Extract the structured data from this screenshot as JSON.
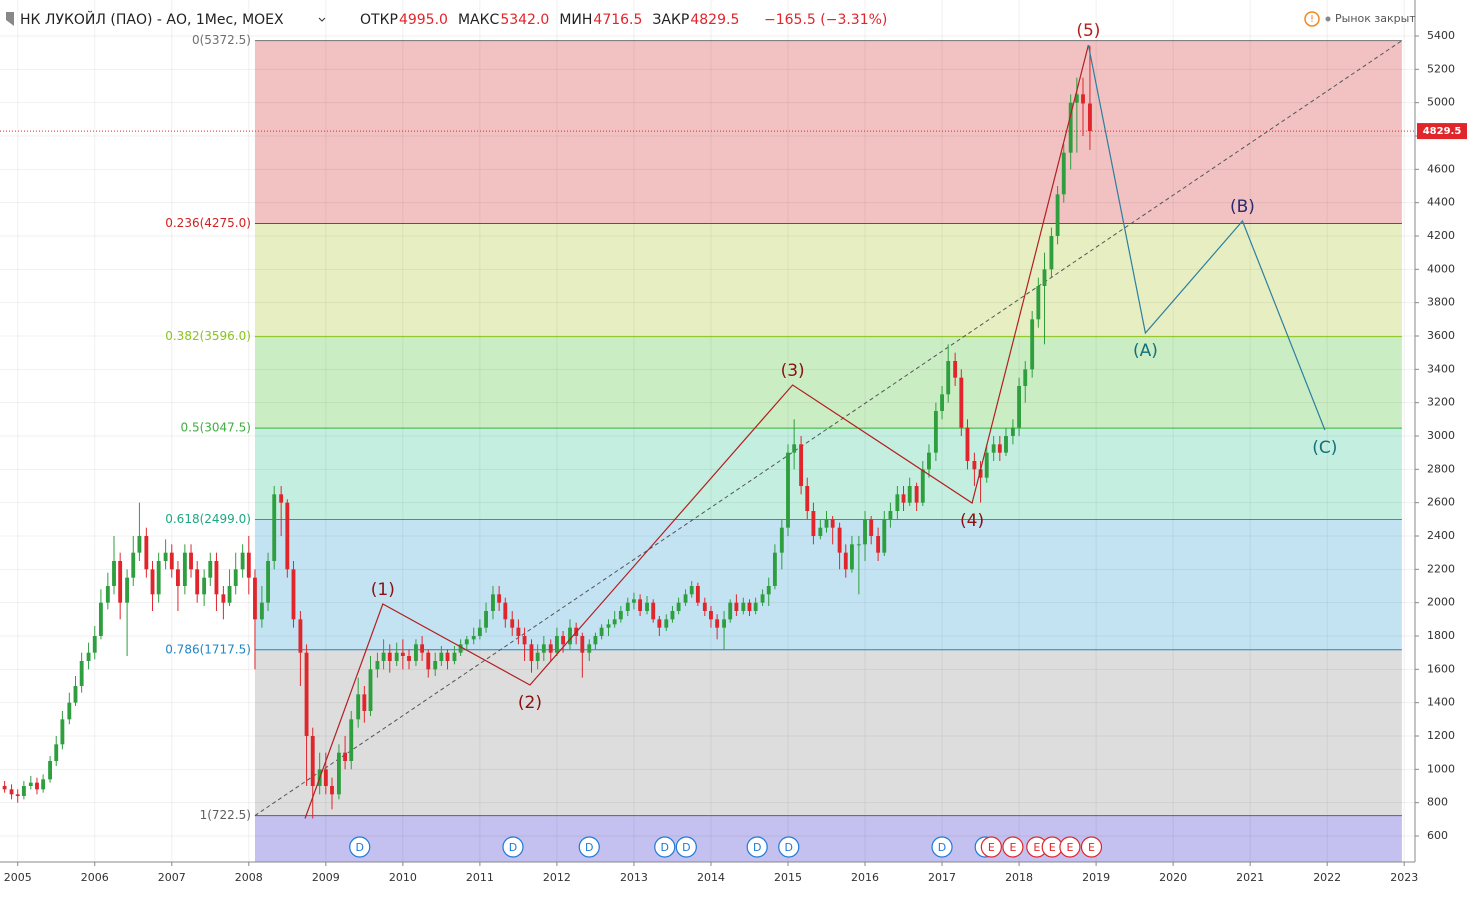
{
  "header": {
    "title": "НК ЛУКОЙЛ (ПАО) - АО, 1Мес, MOEX",
    "ohlc": [
      {
        "label": "ОТКР",
        "value": "4995.0"
      },
      {
        "label": "МАКС",
        "value": "5342.0"
      },
      {
        "label": "МИН",
        "value": "4716.5"
      },
      {
        "label": "ЗАКР",
        "value": "4829.5"
      }
    ],
    "change": "−165.5 (−3.31%)",
    "status": "Рынок закрыт"
  },
  "chart_data": {
    "type": "candlestick",
    "up_color": "#2e9e3e",
    "down_color": "#e0252b",
    "xlim": [
      2004.77,
      2023.14
    ],
    "xticks": [
      2005,
      2006,
      2007,
      2008,
      2009,
      2010,
      2011,
      2012,
      2013,
      2014,
      2015,
      2016,
      2017,
      2018,
      2019,
      2020,
      2021,
      2022,
      2023
    ],
    "ylim": [
      444,
      5616
    ],
    "yticks": [
      600,
      800,
      1000,
      1200,
      1400,
      1600,
      1800,
      2000,
      2200,
      2400,
      2600,
      2800,
      3000,
      3200,
      3400,
      3600,
      3800,
      4000,
      4200,
      4400,
      4600,
      4800,
      5000,
      5200,
      5400
    ],
    "grid": true,
    "last_price": {
      "value": 4829.5,
      "label": "4829.5",
      "color": "#e0252b"
    },
    "x": [
      2004.83,
      2004.92,
      2005.0,
      2005.08,
      2005.17,
      2005.25,
      2005.33,
      2005.42,
      2005.5,
      2005.58,
      2005.67,
      2005.75,
      2005.83,
      2005.92,
      2006.0,
      2006.08,
      2006.17,
      2006.25,
      2006.33,
      2006.42,
      2006.5,
      2006.58,
      2006.67,
      2006.75,
      2006.83,
      2006.92,
      2007.0,
      2007.08,
      2007.17,
      2007.25,
      2007.33,
      2007.42,
      2007.5,
      2007.58,
      2007.67,
      2007.75,
      2007.83,
      2007.92,
      2008.0,
      2008.08,
      2008.17,
      2008.25,
      2008.33,
      2008.42,
      2008.5,
      2008.58,
      2008.67,
      2008.75,
      2008.83,
      2008.92,
      2009.0,
      2009.08,
      2009.17,
      2009.25,
      2009.33,
      2009.42,
      2009.5,
      2009.58,
      2009.67,
      2009.75,
      2009.83,
      2009.92,
      2010.0,
      2010.08,
      2010.17,
      2010.25,
      2010.33,
      2010.42,
      2010.5,
      2010.58,
      2010.67,
      2010.75,
      2010.83,
      2010.92,
      2011.0,
      2011.08,
      2011.17,
      2011.25,
      2011.33,
      2011.42,
      2011.5,
      2011.58,
      2011.67,
      2011.75,
      2011.83,
      2011.92,
      2012.0,
      2012.08,
      2012.17,
      2012.25,
      2012.33,
      2012.42,
      2012.5,
      2012.58,
      2012.67,
      2012.75,
      2012.83,
      2012.92,
      2013.0,
      2013.08,
      2013.17,
      2013.25,
      2013.33,
      2013.42,
      2013.5,
      2013.58,
      2013.67,
      2013.75,
      2013.83,
      2013.92,
      2014.0,
      2014.08,
      2014.17,
      2014.25,
      2014.33,
      2014.42,
      2014.5,
      2014.58,
      2014.67,
      2014.75,
      2014.83,
      2014.92,
      2015.0,
      2015.08,
      2015.17,
      2015.25,
      2015.33,
      2015.42,
      2015.5,
      2015.58,
      2015.67,
      2015.75,
      2015.83,
      2015.92,
      2016.0,
      2016.08,
      2016.17,
      2016.25,
      2016.33,
      2016.42,
      2016.5,
      2016.58,
      2016.67,
      2016.75,
      2016.83,
      2016.92,
      2017.0,
      2017.08,
      2017.17,
      2017.25,
      2017.33,
      2017.42,
      2017.5,
      2017.58,
      2017.67,
      2017.75,
      2017.83,
      2017.92,
      2018.0,
      2018.08,
      2018.17,
      2018.25,
      2018.33,
      2018.42,
      2018.5,
      2018.58,
      2018.67,
      2018.75,
      2018.83,
      2018.92
    ],
    "ohlc": [
      [
        900,
        930,
        860,
        880
      ],
      [
        880,
        910,
        820,
        850
      ],
      [
        850,
        880,
        800,
        840
      ],
      [
        840,
        930,
        820,
        900
      ],
      [
        900,
        960,
        880,
        920
      ],
      [
        920,
        950,
        850,
        880
      ],
      [
        880,
        970,
        860,
        940
      ],
      [
        940,
        1080,
        920,
        1050
      ],
      [
        1050,
        1200,
        1020,
        1150
      ],
      [
        1150,
        1350,
        1120,
        1300
      ],
      [
        1300,
        1460,
        1270,
        1400
      ],
      [
        1400,
        1560,
        1380,
        1500
      ],
      [
        1500,
        1700,
        1460,
        1650
      ],
      [
        1650,
        1760,
        1600,
        1700
      ],
      [
        1700,
        1860,
        1660,
        1800
      ],
      [
        1800,
        2080,
        1780,
        2000
      ],
      [
        2000,
        2180,
        1960,
        2100
      ],
      [
        2100,
        2400,
        2050,
        2250
      ],
      [
        2250,
        2300,
        1900,
        2000
      ],
      [
        2000,
        2200,
        1680,
        2150
      ],
      [
        2150,
        2400,
        2100,
        2300
      ],
      [
        2300,
        2600,
        2250,
        2400
      ],
      [
        2400,
        2450,
        2150,
        2200
      ],
      [
        2200,
        2250,
        1950,
        2050
      ],
      [
        2050,
        2300,
        2000,
        2250
      ],
      [
        2250,
        2380,
        2200,
        2300
      ],
      [
        2300,
        2350,
        2150,
        2200
      ],
      [
        2200,
        2250,
        1950,
        2100
      ],
      [
        2100,
        2350,
        2050,
        2300
      ],
      [
        2300,
        2350,
        2150,
        2200
      ],
      [
        2200,
        2250,
        2000,
        2050
      ],
      [
        2050,
        2200,
        1980,
        2150
      ],
      [
        2150,
        2300,
        2100,
        2250
      ],
      [
        2250,
        2300,
        1950,
        2050
      ],
      [
        2050,
        2100,
        1900,
        2000
      ],
      [
        2000,
        2200,
        1980,
        2100
      ],
      [
        2100,
        2300,
        2050,
        2200
      ],
      [
        2200,
        2350,
        2150,
        2300
      ],
      [
        2300,
        2400,
        2050,
        2150
      ],
      [
        2150,
        2200,
        1600,
        1900
      ],
      [
        1900,
        2100,
        1850,
        2000
      ],
      [
        2000,
        2300,
        1950,
        2250
      ],
      [
        2250,
        2700,
        2200,
        2650
      ],
      [
        2650,
        2700,
        2400,
        2600
      ],
      [
        2600,
        2620,
        2150,
        2200
      ],
      [
        2200,
        2250,
        1850,
        1900
      ],
      [
        1900,
        1950,
        1500,
        1700
      ],
      [
        1700,
        1750,
        900,
        1200
      ],
      [
        1200,
        1250,
        705,
        900
      ],
      [
        900,
        1100,
        850,
        1000
      ],
      [
        1000,
        1100,
        850,
        900
      ],
      [
        900,
        950,
        760,
        850
      ],
      [
        850,
        1150,
        820,
        1100
      ],
      [
        1100,
        1200,
        1000,
        1050
      ],
      [
        1050,
        1350,
        1000,
        1300
      ],
      [
        1300,
        1550,
        1250,
        1450
      ],
      [
        1450,
        1500,
        1280,
        1350
      ],
      [
        1350,
        1680,
        1320,
        1600
      ],
      [
        1600,
        1700,
        1550,
        1650
      ],
      [
        1650,
        1780,
        1600,
        1700
      ],
      [
        1700,
        1750,
        1580,
        1650
      ],
      [
        1650,
        1760,
        1620,
        1700
      ],
      [
        1700,
        1780,
        1600,
        1680
      ],
      [
        1680,
        1720,
        1600,
        1650
      ],
      [
        1650,
        1780,
        1620,
        1750
      ],
      [
        1750,
        1800,
        1650,
        1700
      ],
      [
        1700,
        1720,
        1550,
        1600
      ],
      [
        1600,
        1700,
        1560,
        1650
      ],
      [
        1650,
        1740,
        1620,
        1700
      ],
      [
        1700,
        1720,
        1600,
        1650
      ],
      [
        1650,
        1740,
        1630,
        1700
      ],
      [
        1700,
        1780,
        1680,
        1750
      ],
      [
        1750,
        1800,
        1720,
        1780
      ],
      [
        1780,
        1850,
        1750,
        1800
      ],
      [
        1800,
        1900,
        1780,
        1850
      ],
      [
        1850,
        2000,
        1820,
        1950
      ],
      [
        1950,
        2100,
        1900,
        2050
      ],
      [
        2050,
        2100,
        1950,
        2000
      ],
      [
        2000,
        2030,
        1850,
        1900
      ],
      [
        1900,
        1950,
        1800,
        1850
      ],
      [
        1850,
        1900,
        1750,
        1800
      ],
      [
        1800,
        1850,
        1650,
        1750
      ],
      [
        1750,
        1780,
        1580,
        1650
      ],
      [
        1650,
        1750,
        1600,
        1700
      ],
      [
        1700,
        1800,
        1650,
        1750
      ],
      [
        1750,
        1780,
        1650,
        1700
      ],
      [
        1700,
        1850,
        1680,
        1800
      ],
      [
        1800,
        1830,
        1700,
        1750
      ],
      [
        1750,
        1900,
        1720,
        1850
      ],
      [
        1850,
        1880,
        1750,
        1800
      ],
      [
        1800,
        1820,
        1550,
        1700
      ],
      [
        1700,
        1780,
        1650,
        1750
      ],
      [
        1750,
        1820,
        1720,
        1800
      ],
      [
        1800,
        1870,
        1780,
        1850
      ],
      [
        1850,
        1900,
        1800,
        1870
      ],
      [
        1870,
        1950,
        1850,
        1900
      ],
      [
        1900,
        1980,
        1880,
        1950
      ],
      [
        1950,
        2030,
        1920,
        2000
      ],
      [
        2000,
        2060,
        1960,
        2020
      ],
      [
        2020,
        2050,
        1920,
        1950
      ],
      [
        1950,
        2040,
        1930,
        2000
      ],
      [
        2000,
        2020,
        1880,
        1900
      ],
      [
        1900,
        1920,
        1800,
        1850
      ],
      [
        1850,
        1930,
        1830,
        1900
      ],
      [
        1900,
        1980,
        1880,
        1950
      ],
      [
        1950,
        2030,
        1930,
        2000
      ],
      [
        2000,
        2080,
        1980,
        2050
      ],
      [
        2050,
        2130,
        2030,
        2100
      ],
      [
        2100,
        2120,
        1980,
        2000
      ],
      [
        2000,
        2030,
        1920,
        1950
      ],
      [
        1950,
        1980,
        1850,
        1900
      ],
      [
        1900,
        1930,
        1780,
        1850
      ],
      [
        1850,
        1950,
        1720,
        1900
      ],
      [
        1900,
        2020,
        1880,
        2000
      ],
      [
        2000,
        2050,
        1920,
        1950
      ],
      [
        1950,
        2030,
        1930,
        2000
      ],
      [
        2000,
        2020,
        1920,
        1950
      ],
      [
        1950,
        2030,
        1930,
        2000
      ],
      [
        2000,
        2080,
        1980,
        2050
      ],
      [
        2050,
        2150,
        1980,
        2100
      ],
      [
        2100,
        2350,
        2080,
        2300
      ],
      [
        2300,
        2500,
        2200,
        2450
      ],
      [
        2450,
        2950,
        2400,
        2900
      ],
      [
        2900,
        3100,
        2800,
        2950
      ],
      [
        2950,
        3000,
        2650,
        2700
      ],
      [
        2700,
        2750,
        2500,
        2550
      ],
      [
        2550,
        2600,
        2350,
        2400
      ],
      [
        2400,
        2500,
        2380,
        2450
      ],
      [
        2450,
        2550,
        2420,
        2500
      ],
      [
        2500,
        2520,
        2350,
        2450
      ],
      [
        2450,
        2480,
        2200,
        2300
      ],
      [
        2300,
        2350,
        2150,
        2200
      ],
      [
        2200,
        2400,
        2180,
        2350
      ],
      [
        2350,
        2400,
        2050,
        2350
      ],
      [
        2350,
        2550,
        2250,
        2500
      ],
      [
        2500,
        2520,
        2350,
        2400
      ],
      [
        2400,
        2450,
        2250,
        2300
      ],
      [
        2300,
        2550,
        2280,
        2500
      ],
      [
        2500,
        2600,
        2450,
        2550
      ],
      [
        2550,
        2700,
        2500,
        2650
      ],
      [
        2650,
        2700,
        2550,
        2600
      ],
      [
        2600,
        2750,
        2580,
        2700
      ],
      [
        2700,
        2720,
        2550,
        2600
      ],
      [
        2600,
        2850,
        2580,
        2800
      ],
      [
        2800,
        2950,
        2750,
        2900
      ],
      [
        2900,
        3200,
        2850,
        3150
      ],
      [
        3150,
        3300,
        3100,
        3250
      ],
      [
        3250,
        3550,
        3200,
        3450
      ],
      [
        3450,
        3500,
        3300,
        3350
      ],
      [
        3350,
        3400,
        3000,
        3050
      ],
      [
        3050,
        3100,
        2800,
        2850
      ],
      [
        2850,
        2900,
        2700,
        2800
      ],
      [
        2800,
        2850,
        2600,
        2750
      ],
      [
        2750,
        2950,
        2720,
        2900
      ],
      [
        2900,
        3000,
        2850,
        2950
      ],
      [
        2950,
        3000,
        2850,
        2900
      ],
      [
        2900,
        3050,
        2880,
        3000
      ],
      [
        3000,
        3100,
        2950,
        3050
      ],
      [
        3050,
        3350,
        3000,
        3300
      ],
      [
        3300,
        3450,
        3200,
        3400
      ],
      [
        3400,
        3750,
        3350,
        3700
      ],
      [
        3700,
        3950,
        3650,
        3900
      ],
      [
        3900,
        4100,
        3550,
        4000
      ],
      [
        4000,
        4250,
        3950,
        4200
      ],
      [
        4200,
        4500,
        4150,
        4450
      ],
      [
        4450,
        4750,
        4400,
        4700
      ],
      [
        4700,
        5050,
        4600,
        5000
      ],
      [
        5000,
        5150,
        4700,
        5050
      ],
      [
        5050,
        5150,
        4800,
        4995
      ],
      [
        4995,
        5342,
        4716.5,
        4829.5
      ]
    ],
    "fib": {
      "x": [
        2008.08,
        2022.97
      ],
      "below_color": "#c4c0f0",
      "levels": [
        {
          "label": "0(5372.5)",
          "value": 5372.5,
          "color": "#707070",
          "fill": "#f2c2c2"
        },
        {
          "label": "0.236(4275.0)",
          "value": 4275.0,
          "color": "#d32020",
          "fill": "#e7efc2"
        },
        {
          "label": "0.382(3596.0)",
          "value": 3596.0,
          "color": "#8cc21c",
          "fill": "#cbedc4"
        },
        {
          "label": "0.5(3047.5)",
          "value": 3047.5,
          "color": "#3fae3f",
          "fill": "#c4efe0"
        },
        {
          "label": "0.618(2499.0)",
          "value": 2499.0,
          "color": "#1ea880",
          "fill": "#c3e3f3"
        },
        {
          "label": "0.786(1717.5)",
          "value": 1717.5,
          "color": "#2086c4",
          "fill": "#dddddd"
        },
        {
          "label": "1(722.5)",
          "value": 722.5,
          "color": "#606060",
          "fill": "#c4c0f0"
        }
      ]
    },
    "impulse": {
      "color": "#b22020",
      "label_color": "#8b1010",
      "points": [
        {
          "x": 2008.73,
          "y": 705,
          "label": null
        },
        {
          "x": 2009.74,
          "y": 1992,
          "label": "(1)"
        },
        {
          "x": 2011.65,
          "y": 1506,
          "label": "(2)"
        },
        {
          "x": 2015.06,
          "y": 3306,
          "label": "(3)"
        },
        {
          "x": 2017.39,
          "y": 2598,
          "label": "(4)"
        },
        {
          "x": 2018.9,
          "y": 5346,
          "label": "(5)"
        }
      ]
    },
    "correction": {
      "color": "#2a7fa0",
      "points": [
        {
          "x": 2019.64,
          "y": 3618,
          "label": "(A)",
          "label_color": "#13707a"
        },
        {
          "x": 2020.9,
          "y": 4290,
          "label": "(B)",
          "label_color": "#2a2a70"
        },
        {
          "x": 2021.97,
          "y": 3036,
          "label": "(C)",
          "label_color": "#13707a"
        }
      ]
    },
    "events": [
      {
        "x": 2009.44,
        "label": "D",
        "color": "#1e7ad8"
      },
      {
        "x": 2011.43,
        "label": "D",
        "color": "#1e7ad8"
      },
      {
        "x": 2012.42,
        "label": "D",
        "color": "#1e7ad8"
      },
      {
        "x": 2013.4,
        "label": "D",
        "color": "#1e7ad8"
      },
      {
        "x": 2013.68,
        "label": "D",
        "color": "#1e7ad8"
      },
      {
        "x": 2014.6,
        "label": "D",
        "color": "#1e7ad8"
      },
      {
        "x": 2015.01,
        "label": "D",
        "color": "#1e7ad8"
      },
      {
        "x": 2017.0,
        "label": "D",
        "color": "#1e7ad8"
      },
      {
        "x": 2017.56,
        "label": "D",
        "color": "#1e7ad8"
      },
      {
        "x": 2017.64,
        "label": "E",
        "color": "#e0252b"
      },
      {
        "x": 2017.92,
        "label": "E",
        "color": "#e0252b"
      },
      {
        "x": 2018.23,
        "label": "E",
        "color": "#e0252b"
      },
      {
        "x": 2018.43,
        "label": "E",
        "color": "#e0252b"
      },
      {
        "x": 2018.66,
        "label": "E",
        "color": "#e0252b"
      },
      {
        "x": 2018.94,
        "label": "E",
        "color": "#e0252b"
      }
    ]
  }
}
